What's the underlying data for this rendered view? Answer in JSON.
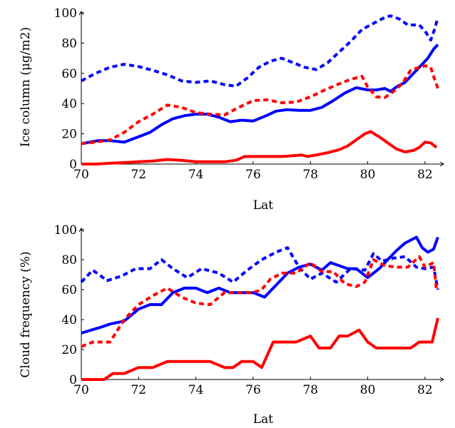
{
  "chart_data": [
    {
      "type": "line",
      "title": "",
      "xlabel": "Lat",
      "ylabel": "Ice column (μg/m2)",
      "xlim": [
        70,
        82.5
      ],
      "ylim": [
        0,
        100
      ],
      "xticks": [
        70,
        72,
        74,
        76,
        78,
        80,
        82
      ],
      "yticks": [
        0,
        20,
        40,
        60,
        80,
        100
      ],
      "grid": false,
      "series": [
        {
          "color": "#0000ff",
          "dash": "solid",
          "x": [
            70,
            70.6,
            71,
            71.5,
            72,
            72.4,
            72.8,
            73.2,
            73.6,
            74,
            74.4,
            74.8,
            75.2,
            75.6,
            76,
            76.4,
            76.8,
            77.2,
            77.6,
            78,
            78.4,
            78.8,
            79.2,
            79.6,
            80,
            80.3,
            80.6,
            80.8,
            81,
            81.3,
            81.6,
            81.9,
            82.1,
            82.3,
            82.45
          ],
          "y": [
            13.5,
            15.5,
            15.5,
            14.5,
            18,
            21,
            26,
            30,
            32,
            33,
            33,
            31,
            28,
            29,
            28.5,
            31.5,
            35,
            36,
            35.5,
            35.5,
            37.5,
            42,
            47,
            50.5,
            49,
            49,
            50,
            48,
            51,
            54,
            60,
            66,
            70,
            76,
            79
          ]
        },
        {
          "color": "#0000ff",
          "dash": "dashed",
          "x": [
            70,
            70.5,
            71,
            71.5,
            72,
            72.5,
            73,
            73.5,
            74,
            74.5,
            75,
            75.4,
            75.8,
            76.2,
            76.6,
            77,
            77.4,
            77.8,
            78.2,
            78.6,
            79,
            79.4,
            79.8,
            80.2,
            80.6,
            80.8,
            81.1,
            81.4,
            81.8,
            82,
            82.2,
            82.35,
            82.45
          ],
          "y": [
            55,
            60,
            64,
            66,
            64.5,
            62,
            59,
            55,
            54,
            55,
            52.5,
            51.5,
            57,
            64,
            68,
            70,
            67,
            64,
            62.5,
            67,
            74,
            81,
            89,
            93,
            97,
            98,
            96,
            92,
            92,
            88,
            82,
            90,
            97
          ]
        },
        {
          "color": "#ff0000",
          "dash": "solid",
          "x": [
            70,
            70.5,
            71,
            71.5,
            72,
            72.5,
            73,
            73.5,
            74,
            74.5,
            75,
            75.4,
            75.7,
            76,
            76.5,
            77,
            77.4,
            77.7,
            77.9,
            78.2,
            78.6,
            79,
            79.3,
            79.6,
            79.9,
            80.1,
            80.4,
            80.7,
            81,
            81.3,
            81.6,
            81.8,
            82,
            82.2,
            82.4
          ],
          "y": [
            0,
            0,
            0.5,
            1,
            1.5,
            2,
            3,
            2.5,
            1.5,
            1.5,
            1.5,
            2.5,
            5,
            5,
            5,
            5,
            5.5,
            6,
            5,
            6,
            7.5,
            9.5,
            12,
            16,
            20,
            21.5,
            18,
            14,
            10,
            8,
            9,
            11,
            14.5,
            14,
            11
          ]
        },
        {
          "color": "#ff0000",
          "dash": "dashed",
          "x": [
            70,
            70.5,
            71,
            71.5,
            72,
            72.5,
            73,
            73.5,
            74,
            74.5,
            75,
            75.5,
            76,
            76.5,
            77,
            77.5,
            78,
            78.5,
            79,
            79.4,
            79.8,
            80,
            80.3,
            80.6,
            80.9,
            81.2,
            81.5,
            81.8,
            82,
            82.2,
            82.3,
            82.45
          ],
          "y": [
            13.5,
            14.5,
            16,
            21,
            28,
            33,
            39,
            37.5,
            34,
            33,
            32.5,
            37.5,
            42,
            42.5,
            40.5,
            41,
            44.5,
            49,
            53,
            56,
            58,
            51,
            44.5,
            44,
            48,
            53,
            62,
            64,
            65,
            64,
            58,
            50
          ]
        }
      ]
    },
    {
      "type": "line",
      "title": "",
      "xlabel": "Lat",
      "ylabel": "Cloud frequency (%)",
      "xlim": [
        70,
        82.5
      ],
      "ylim": [
        0,
        100
      ],
      "xticks": [
        70,
        72,
        74,
        76,
        78,
        80,
        82
      ],
      "yticks": [
        0,
        20,
        40,
        60,
        80,
        100
      ],
      "grid": false,
      "series": [
        {
          "color": "#0000ff",
          "dash": "solid",
          "x": [
            70,
            70.7,
            71,
            71.5,
            72,
            72.4,
            72.8,
            73.2,
            73.6,
            74,
            74.4,
            74.8,
            75.2,
            75.6,
            76,
            76.4,
            76.8,
            77.2,
            77.6,
            78,
            78.4,
            78.7,
            79,
            79.3,
            79.6,
            80,
            80.4,
            80.7,
            81,
            81.3,
            81.7,
            81.9,
            82.1,
            82.3,
            82.45
          ],
          "y": [
            31,
            35,
            37,
            39,
            47,
            50,
            50,
            58,
            61,
            61,
            58,
            61,
            58,
            58,
            58,
            55,
            63,
            71,
            75,
            77,
            73,
            78,
            76,
            74,
            74,
            68,
            74,
            80,
            86,
            91,
            95,
            88,
            85,
            87,
            95
          ]
        },
        {
          "color": "#0000ff",
          "dash": "dashed",
          "x": [
            70,
            70.4,
            70.9,
            71.4,
            71.9,
            72.4,
            72.8,
            73.2,
            73.7,
            74.2,
            74.8,
            75.3,
            75.8,
            76.3,
            76.8,
            77.2,
            77.6,
            78,
            78.4,
            78.9,
            79.4,
            79.9,
            80.2,
            80.5,
            80.9,
            81.3,
            81.7,
            82,
            82.3,
            82.45
          ],
          "y": [
            65,
            73,
            66,
            69,
            74,
            74,
            80,
            74,
            68,
            74,
            71,
            65,
            73,
            80,
            85,
            88,
            75,
            67,
            71,
            65,
            74,
            73,
            84,
            79,
            81,
            82,
            75,
            74,
            75,
            60
          ]
        },
        {
          "color": "#ff0000",
          "dash": "solid",
          "x": [
            70,
            70.4,
            70.8,
            71.1,
            71.5,
            72,
            72.5,
            73,
            73.5,
            74,
            74.5,
            75,
            75.3,
            75.6,
            76,
            76.3,
            76.7,
            77,
            77.5,
            78,
            78.3,
            78.7,
            79,
            79.3,
            79.7,
            80,
            80.3,
            80.6,
            81,
            81.5,
            81.8,
            82,
            82.25,
            82.45
          ],
          "y": [
            0,
            0,
            0,
            4,
            4,
            8,
            8,
            12,
            12,
            12,
            12,
            8,
            8,
            12,
            12,
            8,
            25,
            25,
            25,
            29,
            21,
            21,
            29,
            29,
            33,
            25,
            21,
            21,
            21,
            21,
            25,
            25,
            25,
            41
          ]
        },
        {
          "color": "#ff0000",
          "dash": "dashed",
          "x": [
            70,
            70.4,
            71,
            71.5,
            72,
            72.5,
            73,
            73.5,
            74,
            74.5,
            75,
            75.5,
            76,
            76.3,
            76.6,
            77,
            77.5,
            78,
            78.4,
            78.8,
            79.2,
            79.6,
            79.9,
            80.2,
            80.6,
            81,
            81.4,
            81.8,
            82,
            82.3,
            82.4
          ],
          "y": [
            22,
            25,
            25,
            40,
            50,
            56,
            61,
            55,
            51,
            50,
            58,
            58,
            58,
            60,
            67,
            71,
            71,
            78,
            72,
            72,
            64,
            62,
            65,
            80,
            76,
            75,
            75,
            82,
            75,
            78,
            60
          ]
        }
      ]
    }
  ]
}
